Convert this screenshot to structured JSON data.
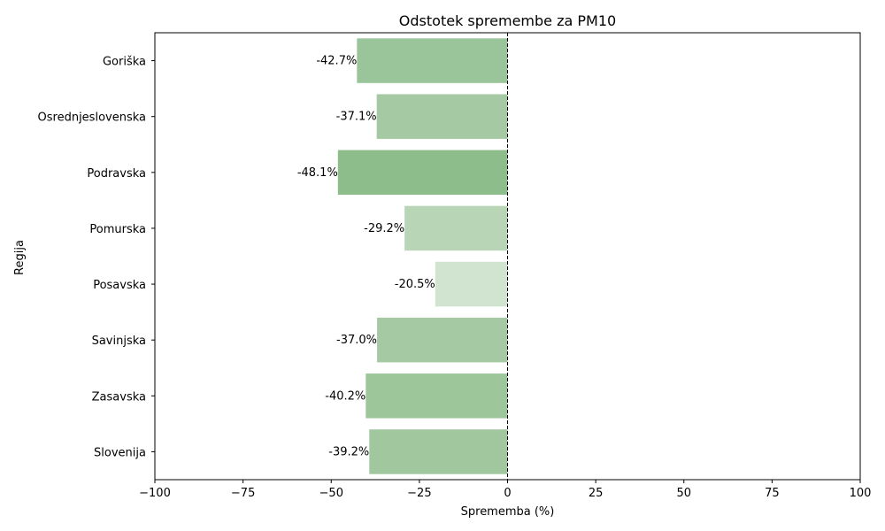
{
  "chart_data": {
    "type": "bar",
    "orientation": "horizontal",
    "title": "Odstotek spremembe za PM10",
    "xlabel": "Sprememba (%)",
    "ylabel": "Regija",
    "xlim": [
      -100,
      100
    ],
    "xticks": [
      -100,
      -75,
      -50,
      -25,
      0,
      25,
      50,
      75,
      100
    ],
    "xtick_labels": [
      "−100",
      "−75",
      "−50",
      "−25",
      "0",
      "25",
      "50",
      "75",
      "100"
    ],
    "reference_line": 0,
    "grid": false,
    "categories": [
      "Goriška",
      "Osrednjeslovenska",
      "Podravska",
      "Pomurska",
      "Posavska",
      "Savinjska",
      "Zasavska",
      "Slovenija"
    ],
    "values": [
      -42.7,
      -37.1,
      -48.1,
      -29.2,
      -20.5,
      -37.0,
      -40.2,
      -39.2
    ],
    "data_labels": [
      "-42.7%",
      "-37.1%",
      "-48.1%",
      "-29.2%",
      "-20.5%",
      "-37.0%",
      "-40.2%",
      "-39.2%"
    ],
    "colors": [
      "#9ac59a",
      "#a5caa3",
      "#8dbd8b",
      "#b8d6b6",
      "#d0e4cf",
      "#a5caa3",
      "#9dc69b",
      "#a0c79e"
    ]
  }
}
